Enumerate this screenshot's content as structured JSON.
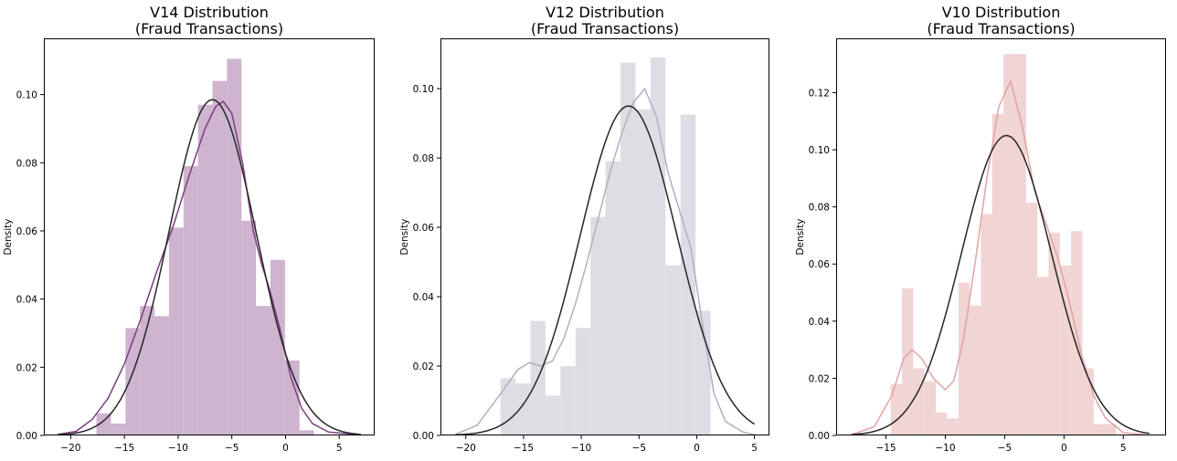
{
  "chart_data": [
    {
      "type": "histogram+kde+normal",
      "title_line1": "V14 Distribution",
      "title_line2": "(Fraud Transactions)",
      "ylabel": "Density",
      "xlabel": "",
      "xlim": [
        -22.5,
        8.3
      ],
      "ylim": [
        0,
        0.1165
      ],
      "xticks": [
        -20,
        -15,
        -10,
        -5,
        0,
        5
      ],
      "yticks": [
        0.0,
        0.02,
        0.04,
        0.06,
        0.08,
        0.1
      ],
      "bin_edges": [
        -17.6,
        -16.25,
        -14.9,
        -13.55,
        -12.2,
        -10.85,
        -9.5,
        -8.15,
        -6.8,
        -5.45,
        -4.1,
        -2.75,
        -1.4,
        -0.05,
        1.3,
        2.65
      ],
      "bin_heights": [
        0.0065,
        0.0035,
        0.0315,
        0.038,
        0.035,
        0.061,
        0.079,
        0.097,
        0.104,
        0.1105,
        0.063,
        0.038,
        0.0515,
        0.022,
        0.0015
      ],
      "hist_color": "#ceb4cf",
      "kde_color": "#7b3f7d",
      "normal_color": "#262626",
      "kde_points": [
        [
          -21.2,
          0.0003
        ],
        [
          -19.5,
          0.0012
        ],
        [
          -18.0,
          0.0047
        ],
        [
          -16.5,
          0.011
        ],
        [
          -15.0,
          0.021
        ],
        [
          -13.5,
          0.034
        ],
        [
          -12.0,
          0.048
        ],
        [
          -10.5,
          0.061
        ],
        [
          -9.0,
          0.076
        ],
        [
          -7.5,
          0.09
        ],
        [
          -6.5,
          0.0965
        ],
        [
          -5.8,
          0.098
        ],
        [
          -5.0,
          0.0945
        ],
        [
          -4.0,
          0.08
        ],
        [
          -3.0,
          0.06
        ],
        [
          -2.2,
          0.05
        ],
        [
          -1.5,
          0.043
        ],
        [
          -0.5,
          0.031
        ],
        [
          0.5,
          0.017
        ],
        [
          1.5,
          0.008
        ],
        [
          2.5,
          0.0035
        ],
        [
          4.0,
          0.001
        ],
        [
          7.0,
          0.0001
        ]
      ],
      "normal_mu": -6.8,
      "normal_sigma": 4.05,
      "normal_xrange": [
        -21.2,
        7.0
      ]
    },
    {
      "type": "histogram+kde+normal",
      "title_line1": "V12 Distribution",
      "title_line2": "(Fraud Transactions)",
      "ylabel": "Density",
      "xlabel": "",
      "xlim": [
        -22.2,
        6.3
      ],
      "ylim": [
        0,
        0.1145
      ],
      "xticks": [
        -20,
        -15,
        -10,
        -5,
        0,
        5
      ],
      "yticks": [
        0.0,
        0.02,
        0.04,
        0.06,
        0.08,
        0.1
      ],
      "bin_edges": [
        -17.0,
        -15.7,
        -14.4,
        -13.1,
        -11.8,
        -10.5,
        -9.2,
        -7.9,
        -6.6,
        -5.3,
        -4.0,
        -2.7,
        -1.4,
        -0.1,
        1.2
      ],
      "bin_heights": [
        0.0165,
        0.015,
        0.033,
        0.0115,
        0.02,
        0.031,
        0.063,
        0.079,
        0.1075,
        0.094,
        0.109,
        0.049,
        0.0925,
        0.036
      ],
      "hist_color": "#dcdee4",
      "kde_color": "#b0b0be",
      "normal_color": "#262626",
      "kde_points": [
        [
          -20.9,
          0.0003
        ],
        [
          -19.0,
          0.003
        ],
        [
          -17.0,
          0.012
        ],
        [
          -15.5,
          0.019
        ],
        [
          -14.5,
          0.021
        ],
        [
          -13.5,
          0.02
        ],
        [
          -12.5,
          0.0215
        ],
        [
          -11.5,
          0.028
        ],
        [
          -10.5,
          0.038
        ],
        [
          -9.5,
          0.05
        ],
        [
          -8.5,
          0.063
        ],
        [
          -7.5,
          0.076
        ],
        [
          -6.5,
          0.087
        ],
        [
          -5.5,
          0.096
        ],
        [
          -4.5,
          0.1
        ],
        [
          -3.5,
          0.092
        ],
        [
          -2.5,
          0.076
        ],
        [
          -1.5,
          0.065
        ],
        [
          -0.5,
          0.054
        ],
        [
          0.5,
          0.032
        ],
        [
          1.5,
          0.012
        ],
        [
          2.5,
          0.004
        ],
        [
          4.0,
          0.001
        ],
        [
          5.0,
          0.0002
        ]
      ],
      "normal_mu": -5.9,
      "normal_sigma": 4.2,
      "normal_xrange": [
        -20.9,
        5.0
      ]
    },
    {
      "type": "histogram+kde+normal",
      "title_line1": "V10 Distribution",
      "title_line2": "(Fraud Transactions)",
      "ylabel": "Density",
      "xlabel": "",
      "xlim": [
        -19.2,
        8.6
      ],
      "ylim": [
        0,
        0.139
      ],
      "xticks": [
        -15,
        -10,
        -5,
        0,
        5
      ],
      "yticks": [
        0.0,
        0.02,
        0.04,
        0.06,
        0.08,
        0.1,
        0.12
      ],
      "bin_edges": [
        -14.6,
        -13.65,
        -12.7,
        -11.75,
        -10.8,
        -9.85,
        -8.9,
        -7.95,
        -7.0,
        -6.05,
        -5.1,
        -4.15,
        -3.2,
        -2.25,
        -1.3,
        -0.35,
        0.6,
        1.55,
        2.5,
        3.45,
        4.4
      ],
      "bin_heights": [
        0.018,
        0.0515,
        0.0235,
        0.019,
        0.008,
        0.006,
        0.0535,
        0.0455,
        0.0775,
        0.1125,
        0.1335,
        0.1335,
        0.0815,
        0.0555,
        0.071,
        0.0595,
        0.0715,
        0.0235,
        0.004,
        0.004
      ],
      "hist_color": "#f1d4d4",
      "kde_color": "#e0a3a4",
      "normal_color": "#262626",
      "kde_points": [
        [
          -17.9,
          0.0003
        ],
        [
          -16.0,
          0.003
        ],
        [
          -14.5,
          0.014
        ],
        [
          -13.5,
          0.027
        ],
        [
          -12.8,
          0.03
        ],
        [
          -12.0,
          0.027
        ],
        [
          -11.0,
          0.02
        ],
        [
          -10.0,
          0.016
        ],
        [
          -9.3,
          0.019
        ],
        [
          -8.5,
          0.033
        ],
        [
          -7.5,
          0.06
        ],
        [
          -6.5,
          0.09
        ],
        [
          -5.5,
          0.115
        ],
        [
          -4.5,
          0.124
        ],
        [
          -3.5,
          0.108
        ],
        [
          -2.5,
          0.086
        ],
        [
          -1.5,
          0.074
        ],
        [
          -0.5,
          0.062
        ],
        [
          0.5,
          0.046
        ],
        [
          1.5,
          0.028
        ],
        [
          2.5,
          0.014
        ],
        [
          3.5,
          0.006
        ],
        [
          5.0,
          0.001
        ],
        [
          7.2,
          0.0001
        ]
      ],
      "normal_mu": -4.85,
      "normal_sigma": 3.8,
      "normal_xrange": [
        -17.9,
        7.2
      ]
    }
  ]
}
